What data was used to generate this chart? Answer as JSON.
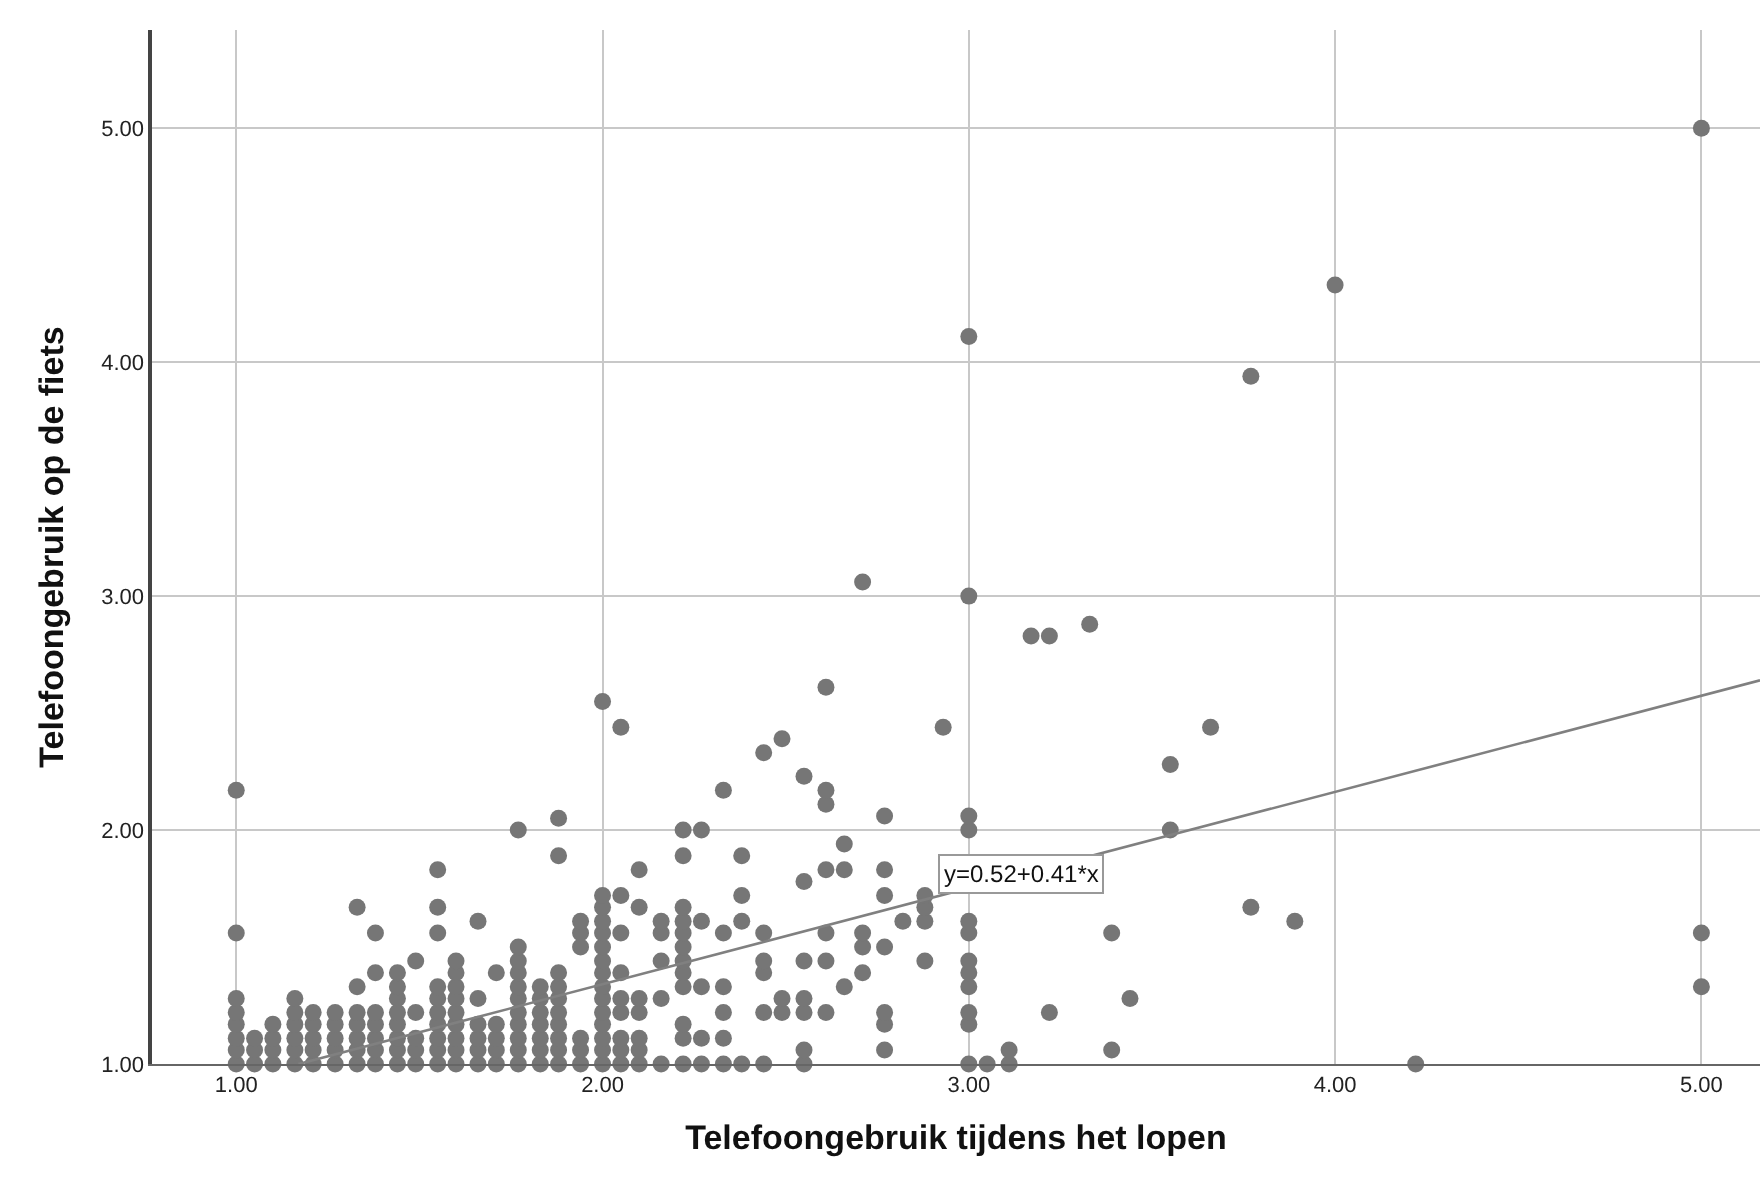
{
  "chart_data": {
    "type": "scatter",
    "xlabel": "Telefoongebruik tijdens het lopen",
    "ylabel": "Telefoongebruik op de fiets",
    "xlim": [
      0.77,
      5.16
    ],
    "ylim": [
      1.0,
      5.42
    ],
    "xticks": [
      {
        "value": 1,
        "label": "1.00"
      },
      {
        "value": 2,
        "label": "2.00"
      },
      {
        "value": 3,
        "label": "3.00"
      },
      {
        "value": 4,
        "label": "4.00"
      },
      {
        "value": 5,
        "label": "5.00"
      }
    ],
    "yticks": [
      {
        "value": 1,
        "label": "1.00"
      },
      {
        "value": 2,
        "label": "2.00"
      },
      {
        "value": 3,
        "label": "3.00"
      },
      {
        "value": 4,
        "label": "4.00"
      },
      {
        "value": 5,
        "label": "5.00"
      }
    ],
    "grid": true,
    "series": [
      {
        "color": "#767676",
        "marker": "circle",
        "x": [
          1.0,
          1.0,
          1.0,
          1.0,
          1.0,
          1.0,
          1.0,
          1.0,
          1.05,
          1.05,
          1.05,
          1.1,
          1.1,
          1.1,
          1.1,
          1.16,
          1.16,
          1.16,
          1.16,
          1.16,
          1.16,
          1.21,
          1.21,
          1.21,
          1.21,
          1.21,
          1.27,
          1.27,
          1.27,
          1.27,
          1.27,
          1.33,
          1.33,
          1.33,
          1.33,
          1.33,
          1.33,
          1.33,
          1.38,
          1.38,
          1.38,
          1.38,
          1.38,
          1.38,
          1.38,
          1.44,
          1.44,
          1.44,
          1.44,
          1.44,
          1.44,
          1.44,
          1.44,
          1.49,
          1.49,
          1.49,
          1.49,
          1.49,
          1.55,
          1.55,
          1.55,
          1.55,
          1.55,
          1.55,
          1.55,
          1.55,
          1.55,
          1.55,
          1.6,
          1.6,
          1.6,
          1.6,
          1.6,
          1.6,
          1.6,
          1.6,
          1.6,
          1.66,
          1.66,
          1.66,
          1.66,
          1.66,
          1.66,
          1.71,
          1.71,
          1.71,
          1.71,
          1.71,
          1.77,
          1.77,
          1.77,
          1.77,
          1.77,
          1.77,
          1.77,
          1.77,
          1.77,
          1.77,
          1.77,
          1.83,
          1.83,
          1.83,
          1.83,
          1.83,
          1.83,
          1.83,
          1.88,
          1.88,
          1.88,
          1.88,
          1.88,
          1.88,
          1.88,
          1.88,
          1.88,
          1.88,
          1.94,
          1.94,
          1.94,
          1.94,
          1.94,
          1.94,
          2.0,
          2.0,
          2.0,
          2.0,
          2.0,
          2.0,
          2.0,
          2.0,
          2.0,
          2.0,
          2.0,
          2.0,
          2.0,
          2.0,
          2.0,
          2.05,
          2.05,
          2.05,
          2.05,
          2.05,
          2.05,
          2.05,
          2.05,
          2.05,
          2.1,
          2.1,
          2.1,
          2.1,
          2.1,
          2.1,
          2.1,
          2.16,
          2.16,
          2.16,
          2.16,
          2.16,
          2.22,
          2.22,
          2.22,
          2.22,
          2.22,
          2.22,
          2.22,
          2.22,
          2.22,
          2.22,
          2.22,
          2.22,
          2.27,
          2.27,
          2.27,
          2.27,
          2.27,
          2.33,
          2.33,
          2.33,
          2.33,
          2.33,
          2.33,
          2.38,
          2.38,
          2.38,
          2.38,
          2.44,
          2.44,
          2.44,
          2.44,
          2.44,
          2.44,
          2.49,
          2.49,
          2.49,
          2.55,
          2.55,
          2.55,
          2.55,
          2.55,
          2.55,
          2.55,
          2.61,
          2.61,
          2.61,
          2.61,
          2.61,
          2.61,
          2.61,
          2.66,
          2.66,
          2.66,
          2.71,
          2.71,
          2.71,
          2.71,
          2.77,
          2.77,
          2.77,
          2.77,
          2.77,
          2.77,
          2.77,
          2.82,
          2.88,
          2.88,
          2.88,
          2.88,
          2.93,
          3.0,
          3.0,
          3.0,
          3.0,
          3.0,
          3.0,
          3.0,
          3.0,
          3.0,
          3.0,
          3.0,
          3.0,
          3.05,
          3.11,
          3.11,
          3.17,
          3.22,
          3.22,
          3.33,
          3.39,
          3.39,
          3.44,
          3.55,
          3.55,
          3.66,
          3.77,
          3.77,
          3.89,
          4.0,
          4.22,
          5.0,
          5.0,
          5.0
        ],
        "values": [
          1.0,
          1.06,
          1.11,
          1.17,
          1.22,
          1.28,
          1.56,
          2.17,
          1.0,
          1.06,
          1.11,
          1.0,
          1.06,
          1.11,
          1.17,
          1.0,
          1.06,
          1.11,
          1.17,
          1.22,
          1.28,
          1.0,
          1.06,
          1.11,
          1.17,
          1.22,
          1.0,
          1.06,
          1.11,
          1.17,
          1.22,
          1.0,
          1.06,
          1.11,
          1.17,
          1.22,
          1.33,
          1.67,
          1.0,
          1.06,
          1.11,
          1.17,
          1.22,
          1.39,
          1.56,
          1.0,
          1.06,
          1.11,
          1.17,
          1.22,
          1.28,
          1.33,
          1.39,
          1.0,
          1.06,
          1.11,
          1.22,
          1.44,
          1.0,
          1.06,
          1.11,
          1.17,
          1.22,
          1.28,
          1.33,
          1.56,
          1.67,
          1.83,
          1.0,
          1.06,
          1.11,
          1.17,
          1.22,
          1.28,
          1.33,
          1.39,
          1.44,
          1.0,
          1.06,
          1.11,
          1.17,
          1.28,
          1.61,
          1.0,
          1.06,
          1.11,
          1.17,
          1.39,
          1.0,
          1.06,
          1.11,
          1.17,
          1.22,
          1.28,
          1.33,
          1.39,
          1.44,
          1.5,
          2.0,
          1.0,
          1.06,
          1.11,
          1.17,
          1.22,
          1.28,
          1.33,
          1.0,
          1.06,
          1.11,
          1.17,
          1.22,
          1.28,
          1.33,
          1.39,
          1.89,
          2.05,
          1.0,
          1.06,
          1.11,
          1.5,
          1.56,
          1.61,
          1.0,
          1.06,
          1.11,
          1.17,
          1.22,
          1.28,
          1.33,
          1.39,
          1.44,
          1.5,
          1.56,
          1.61,
          1.67,
          1.72,
          2.55,
          1.0,
          1.06,
          1.11,
          1.22,
          1.28,
          1.39,
          1.56,
          1.72,
          2.44,
          1.0,
          1.06,
          1.11,
          1.22,
          1.28,
          1.67,
          1.83,
          1.0,
          1.28,
          1.44,
          1.56,
          1.61,
          1.0,
          1.11,
          1.17,
          1.33,
          1.39,
          1.44,
          1.5,
          1.56,
          1.61,
          1.67,
          1.89,
          2.0,
          1.0,
          1.11,
          1.33,
          1.61,
          2.0,
          1.0,
          1.11,
          1.22,
          1.33,
          1.56,
          2.17,
          1.0,
          1.61,
          1.72,
          1.89,
          1.0,
          1.22,
          1.39,
          1.44,
          1.56,
          2.33,
          1.22,
          1.28,
          2.39,
          1.0,
          1.06,
          1.22,
          1.28,
          1.44,
          1.78,
          2.23,
          1.22,
          1.44,
          1.56,
          1.83,
          2.11,
          2.17,
          2.61,
          1.33,
          1.83,
          1.94,
          1.39,
          1.5,
          1.56,
          3.06,
          1.06,
          1.17,
          1.22,
          1.5,
          1.72,
          1.83,
          2.06,
          1.61,
          1.44,
          1.61,
          1.67,
          1.72,
          2.44,
          1.0,
          1.17,
          1.22,
          1.33,
          1.39,
          1.44,
          1.56,
          1.61,
          2.0,
          2.06,
          3.0,
          4.11,
          1.0,
          1.0,
          1.06,
          2.83,
          1.22,
          2.83,
          2.88,
          1.06,
          1.56,
          1.28,
          2.0,
          2.28,
          2.44,
          1.67,
          3.94,
          1.61,
          4.33,
          1.0,
          1.33,
          1.56,
          5.0
        ]
      },
      {
        "type": "line",
        "color": "#808080",
        "line_style": "solid",
        "x": [
          1.17,
          5.16
        ],
        "values": [
          1.0,
          2.64
        ]
      }
    ],
    "annotations": [
      {
        "text": "y=0.52+0.41*x",
        "x": 3.14,
        "y": 1.81
      }
    ]
  }
}
